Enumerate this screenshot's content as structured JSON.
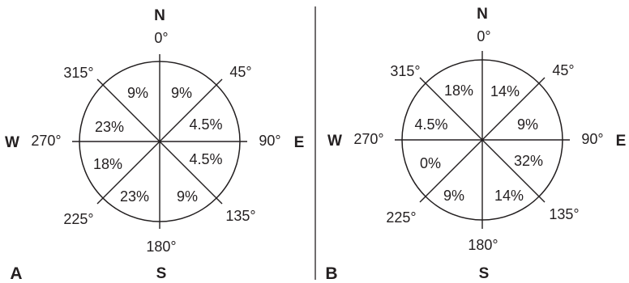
{
  "panels": [
    {
      "panel_label": "A",
      "cardinals": {
        "n": "N",
        "e": "E",
        "s": "S",
        "w": "W"
      },
      "degrees": {
        "d0": "0°",
        "d45": "45°",
        "d90": "90°",
        "d135": "135°",
        "d180": "180°",
        "d225": "225°",
        "d270": "270°",
        "d315": "315°"
      },
      "sectors": [
        {
          "range": "0-45",
          "value": "9%"
        },
        {
          "range": "45-90",
          "value": "4.5%"
        },
        {
          "range": "90-135",
          "value": "4.5%"
        },
        {
          "range": "135-180",
          "value": "9%"
        },
        {
          "range": "180-225",
          "value": "23%"
        },
        {
          "range": "225-270",
          "value": "18%"
        },
        {
          "range": "270-315",
          "value": "23%"
        },
        {
          "range": "315-360",
          "value": "9%"
        }
      ]
    },
    {
      "panel_label": "B",
      "cardinals": {
        "n": "N",
        "e": "E",
        "s": "S",
        "w": "W"
      },
      "degrees": {
        "d0": "0°",
        "d45": "45°",
        "d90": "90°",
        "d135": "135°",
        "d180": "180°",
        "d225": "225°",
        "d270": "270°",
        "d315": "315°"
      },
      "sectors": [
        {
          "range": "0-45",
          "value": "14%"
        },
        {
          "range": "45-90",
          "value": "9%"
        },
        {
          "range": "90-135",
          "value": "32%"
        },
        {
          "range": "135-180",
          "value": "14%"
        },
        {
          "range": "180-225",
          "value": "9%"
        },
        {
          "range": "225-270",
          "value": "0%"
        },
        {
          "range": "270-315",
          "value": "4.5%"
        },
        {
          "range": "315-360",
          "value": "18%"
        }
      ]
    }
  ]
}
